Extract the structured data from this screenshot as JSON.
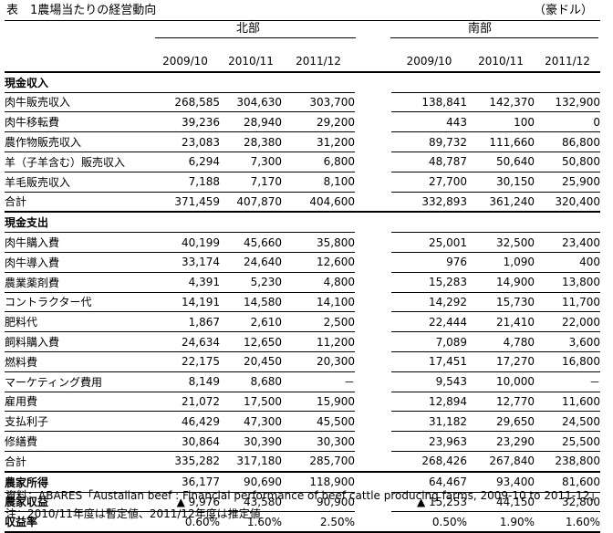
{
  "title": "表　1農場当たりの経営動向",
  "unit": "（豪ドル）",
  "regions": [
    "北部",
    "南部"
  ],
  "years": [
    "2009/10",
    "2010/11",
    "2011/12"
  ],
  "sections": {
    "income": "現金収入",
    "expense": "現金支出"
  },
  "income_rows": [
    {
      "label": "肉牛販売収入",
      "north": [
        "268,585",
        "304,630",
        "303,700"
      ],
      "south": [
        "138,841",
        "142,370",
        "132,900"
      ]
    },
    {
      "label": "肉牛移転費",
      "north": [
        "39,236",
        "28,940",
        "29,200"
      ],
      "south": [
        "443",
        "100",
        "0"
      ]
    },
    {
      "label": "農作物販売収入",
      "north": [
        "23,083",
        "28,380",
        "31,200"
      ],
      "south": [
        "89,732",
        "111,660",
        "86,800"
      ]
    },
    {
      "label": "羊（子羊含む）販売収入",
      "north": [
        "6,294",
        "7,300",
        "6,800"
      ],
      "south": [
        "48,787",
        "50,640",
        "50,800"
      ]
    },
    {
      "label": "羊毛販売収入",
      "north": [
        "7,188",
        "7,170",
        "8,100"
      ],
      "south": [
        "27,700",
        "30,150",
        "25,900"
      ]
    }
  ],
  "income_total": {
    "label": "合計",
    "north": [
      "371,459",
      "407,870",
      "404,600"
    ],
    "south": [
      "332,893",
      "361,240",
      "320,400"
    ]
  },
  "expense_rows": [
    {
      "label": "肉牛購入費",
      "north": [
        "40,199",
        "45,660",
        "35,800"
      ],
      "south": [
        "25,001",
        "32,500",
        "23,400"
      ]
    },
    {
      "label": "肉牛導入費",
      "north": [
        "33,174",
        "24,640",
        "12,600"
      ],
      "south": [
        "976",
        "1,090",
        "400"
      ]
    },
    {
      "label": "農業薬剤費",
      "north": [
        "4,391",
        "5,230",
        "4,800"
      ],
      "south": [
        "15,283",
        "14,900",
        "13,800"
      ]
    },
    {
      "label": "コントラクター代",
      "north": [
        "14,191",
        "14,580",
        "14,100"
      ],
      "south": [
        "14,292",
        "15,730",
        "11,700"
      ]
    },
    {
      "label": "肥料代",
      "north": [
        "1,867",
        "2,610",
        "2,500"
      ],
      "south": [
        "22,444",
        "21,410",
        "22,000"
      ]
    },
    {
      "label": "飼料購入費",
      "north": [
        "24,634",
        "12,650",
        "11,200"
      ],
      "south": [
        "7,089",
        "4,780",
        "3,600"
      ]
    },
    {
      "label": "燃料費",
      "north": [
        "22,175",
        "20,450",
        "20,300"
      ],
      "south": [
        "17,451",
        "17,270",
        "16,800"
      ]
    },
    {
      "label": "マーケティング費用",
      "north": [
        "8,149",
        "8,680",
        "－"
      ],
      "south": [
        "9,543",
        "10,000",
        "－"
      ]
    },
    {
      "label": "雇用費",
      "north": [
        "21,072",
        "17,500",
        "15,900"
      ],
      "south": [
        "12,894",
        "12,770",
        "11,600"
      ]
    },
    {
      "label": "支払利子",
      "north": [
        "46,429",
        "47,300",
        "45,500"
      ],
      "south": [
        "31,182",
        "29,650",
        "24,500"
      ]
    },
    {
      "label": "修繕費",
      "north": [
        "30,864",
        "30,390",
        "30,300"
      ],
      "south": [
        "23,963",
        "23,290",
        "25,500"
      ]
    }
  ],
  "expense_total": {
    "label": "合計",
    "north": [
      "335,282",
      "317,180",
      "285,700"
    ],
    "south": [
      "268,426",
      "267,840",
      "238,800"
    ]
  },
  "summary_rows": [
    {
      "label": "農家所得",
      "north": [
        "36,177",
        "90,690",
        "118,900"
      ],
      "south": [
        "64,467",
        "93,400",
        "81,600"
      ]
    },
    {
      "label": "農家収益",
      "north": [
        "▲ 9,976",
        "43,580",
        "90,900"
      ],
      "south": [
        "▲ 15,253",
        "44,150",
        "32,800"
      ]
    },
    {
      "label": "収益率",
      "north": [
        "0.60%",
        "1.60%",
        "2.50%"
      ],
      "south": [
        "0.50%",
        "1.90%",
        "1.60%"
      ]
    }
  ],
  "footnotes": [
    "資料：ABARES「Austalian beef : Financial performance of beef cattle producing farms, 2009-10 to 2011-12」",
    "注：2010/11年度は暫定値、2011/12年度は推定値"
  ]
}
